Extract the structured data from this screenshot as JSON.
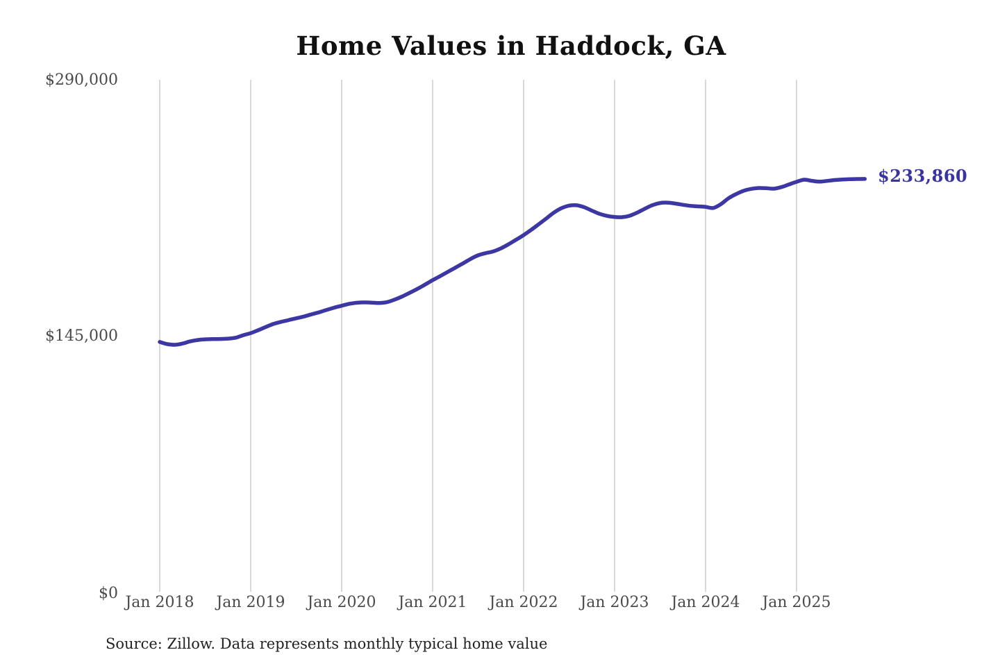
{
  "chart": {
    "title": "Home Values in Haddock, GA",
    "end_label": "$233,860",
    "source_note": "Source: Zillow. Data represents monthly typical home value",
    "y_axis_labels": [
      "$290,000",
      "$145,000",
      "$0"
    ],
    "line_color": "#3d37a3",
    "gridline_color": "#cbcbcb"
  },
  "chart_data": {
    "type": "line",
    "title": "Home Values in Haddock, GA",
    "unit": "USD",
    "frequency": "monthly",
    "x_start": "2018-01",
    "x_end": "2025-10",
    "x_tick_labels": [
      "Jan 2018",
      "Jan 2019",
      "Jan 2020",
      "Jan 2021",
      "Jan 2022",
      "Jan 2023",
      "Jan 2024",
      "Jan 2025"
    ],
    "y_ticks": [
      0,
      145000,
      290000
    ],
    "ylim": [
      0,
      290000
    ],
    "grid": "vertical-only",
    "legend": false,
    "latest_value": 233860,
    "latest_value_label": "$233,860",
    "series": [
      {
        "name": "Typical home value",
        "values": [
          141500,
          140300,
          139900,
          140600,
          141800,
          142600,
          143000,
          143100,
          143200,
          143400,
          143900,
          145300,
          146500,
          148200,
          150000,
          151700,
          152900,
          153900,
          154900,
          155900,
          157100,
          158300,
          159600,
          160900,
          162000,
          163100,
          163700,
          163900,
          163800,
          163600,
          164100,
          165500,
          167300,
          169400,
          171600,
          174000,
          176500,
          178800,
          181200,
          183600,
          186000,
          188500,
          190600,
          191800,
          192800,
          194500,
          196800,
          199400,
          202000,
          205000,
          208200,
          211500,
          214800,
          217300,
          218700,
          218900,
          217800,
          215900,
          214100,
          212900,
          212300,
          212200,
          213000,
          214800,
          217000,
          219000,
          220200,
          220400,
          219900,
          219200,
          218600,
          218300,
          218000,
          217400,
          219500,
          222800,
          225200,
          227100,
          228200,
          228700,
          228600,
          228300,
          229200,
          230700,
          232200,
          233400,
          232800,
          232300,
          232700,
          233200,
          233500,
          233700,
          233800,
          233860
        ]
      }
    ]
  }
}
